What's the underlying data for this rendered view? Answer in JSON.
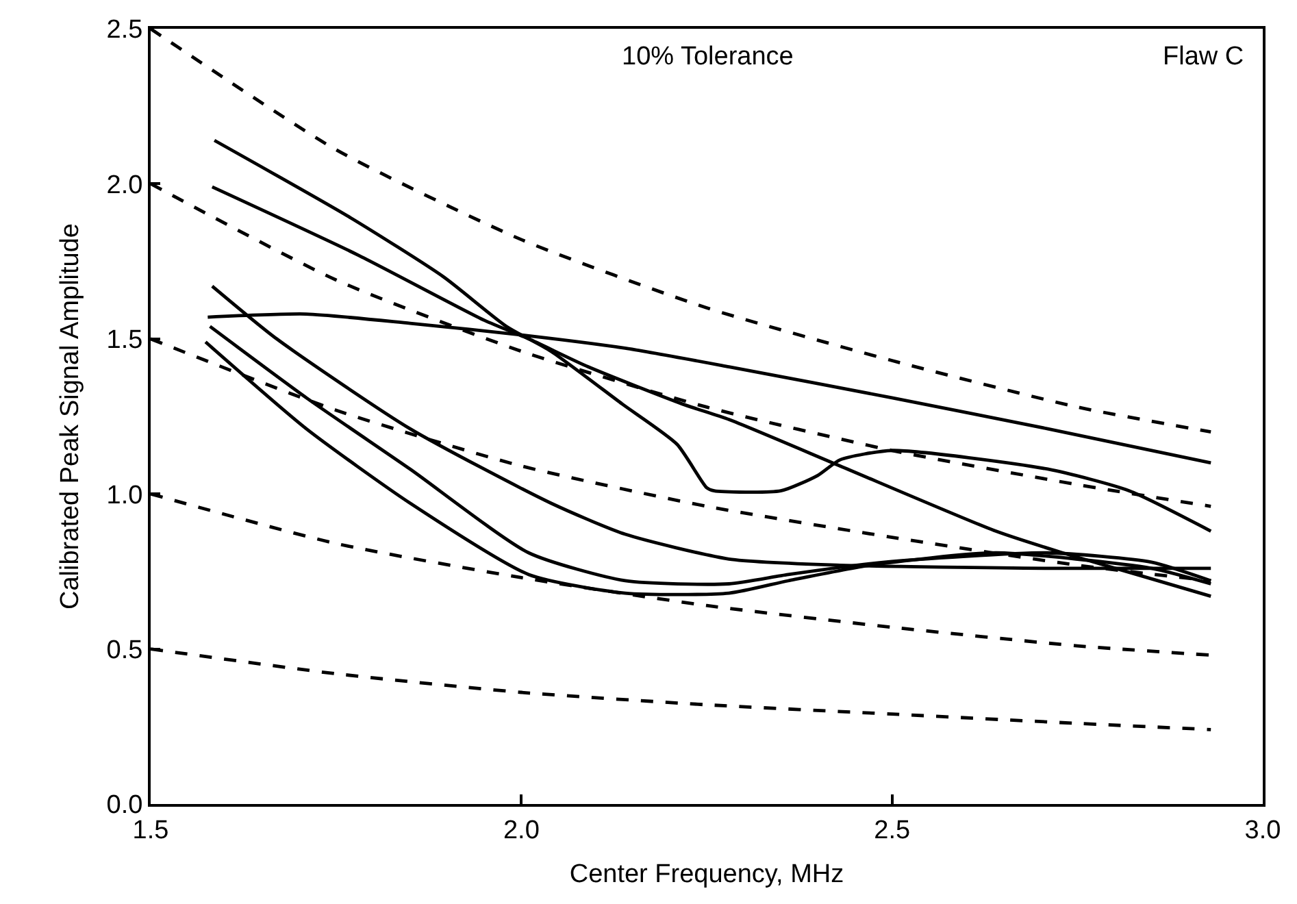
{
  "chart_data": {
    "type": "line",
    "xlabel": "Center Frequency, MHz",
    "ylabel": "Calibrated Peak Signal Amplitude",
    "annotations": [
      "10% Tolerance",
      "Flaw C"
    ],
    "xlim": [
      1.5,
      3.0
    ],
    "ylim": [
      0,
      2.5
    ],
    "xticks": [
      {
        "value": 1.5,
        "label": "1.5"
      },
      {
        "value": 2.0,
        "label": "2.0"
      },
      {
        "value": 2.5,
        "label": "2.5"
      },
      {
        "value": 3.0,
        "label": "3.0"
      }
    ],
    "yticks": [
      {
        "value": 0,
        "label": "0.0"
      },
      {
        "value": 0.5,
        "label": "0.5"
      },
      {
        "value": 1.0,
        "label": "1.0"
      },
      {
        "value": 1.5,
        "label": "1.5"
      },
      {
        "value": 2.0,
        "label": "2.0"
      },
      {
        "value": 2.5,
        "label": "2.5"
      }
    ],
    "marker": "none",
    "series": [
      {
        "color": "#000000",
        "line_style": "dashed",
        "x": [
          1.5,
          1.75,
          2.0,
          2.25,
          2.5,
          2.75,
          2.93
        ],
        "values": [
          2.5,
          2.11,
          1.82,
          1.6,
          1.43,
          1.28,
          1.2
        ]
      },
      {
        "color": "#000000",
        "line_style": "dashed",
        "x": [
          1.5,
          1.75,
          2.0,
          2.25,
          2.5,
          2.75,
          2.93
        ],
        "values": [
          2.0,
          1.69,
          1.46,
          1.28,
          1.14,
          1.03,
          0.96
        ]
      },
      {
        "color": "#000000",
        "line_style": "dashed",
        "x": [
          1.5,
          1.75,
          2.0,
          2.25,
          2.5,
          2.75,
          2.93
        ],
        "values": [
          1.5,
          1.27,
          1.09,
          0.96,
          0.86,
          0.77,
          0.72
        ]
      },
      {
        "color": "#000000",
        "line_style": "dashed",
        "x": [
          1.5,
          1.75,
          2.0,
          2.25,
          2.5,
          2.75,
          2.93
        ],
        "values": [
          1.0,
          0.84,
          0.73,
          0.64,
          0.57,
          0.51,
          0.48
        ]
      },
      {
        "color": "#000000",
        "line_style": "dashed",
        "x": [
          1.5,
          1.75,
          2.0,
          2.25,
          2.5,
          2.75,
          2.93
        ],
        "values": [
          0.5,
          0.42,
          0.36,
          0.32,
          0.29,
          0.26,
          0.24
        ]
      },
      {
        "color": "#000000",
        "line_style": "solid",
        "x": [
          1.586,
          1.77,
          1.895,
          1.98,
          2.04,
          2.136,
          2.21,
          2.25,
          2.26,
          2.35,
          2.4,
          2.43,
          2.5,
          2.71,
          2.82,
          2.93
        ],
        "values": [
          2.14,
          1.89,
          1.7,
          1.54,
          1.46,
          1.29,
          1.16,
          1.02,
          1.01,
          1.01,
          1.06,
          1.11,
          1.14,
          1.08,
          1.01,
          0.88
        ]
      },
      {
        "color": "#000000",
        "line_style": "solid",
        "x": [
          1.583,
          1.78,
          1.95,
          2.01,
          2.09,
          2.217,
          2.28,
          2.43,
          2.64,
          2.73,
          2.83,
          2.93
        ],
        "values": [
          1.99,
          1.77,
          1.56,
          1.5,
          1.41,
          1.29,
          1.24,
          1.09,
          0.88,
          0.81,
          0.74,
          0.67
        ]
      },
      {
        "color": "#000000",
        "line_style": "solid",
        "x": [
          1.577,
          1.71,
          1.85,
          2.01,
          2.14,
          2.28,
          2.5,
          2.71,
          2.93
        ],
        "values": [
          1.57,
          1.58,
          1.55,
          1.51,
          1.47,
          1.41,
          1.31,
          1.21,
          1.1
        ]
      },
      {
        "color": "#000000",
        "line_style": "solid",
        "x": [
          1.583,
          1.67,
          1.85,
          2.04,
          2.14,
          2.28,
          2.43,
          2.71,
          2.93
        ],
        "values": [
          1.67,
          1.5,
          1.21,
          0.97,
          0.87,
          0.79,
          0.77,
          0.76,
          0.76
        ]
      },
      {
        "color": "#000000",
        "line_style": "solid",
        "x": [
          1.58,
          1.71,
          1.85,
          2.01,
          2.14,
          2.28,
          2.36,
          2.49,
          2.71,
          2.85,
          2.93
        ],
        "values": [
          1.54,
          1.31,
          1.08,
          0.81,
          0.72,
          0.71,
          0.74,
          0.78,
          0.81,
          0.78,
          0.72
        ]
      },
      {
        "color": "#000000",
        "line_style": "solid",
        "x": [
          1.574,
          1.71,
          1.85,
          2.01,
          2.14,
          2.28,
          2.36,
          2.47,
          2.64,
          2.85,
          2.93
        ],
        "values": [
          1.49,
          1.21,
          0.97,
          0.74,
          0.68,
          0.68,
          0.72,
          0.77,
          0.81,
          0.76,
          0.71
        ]
      }
    ]
  }
}
